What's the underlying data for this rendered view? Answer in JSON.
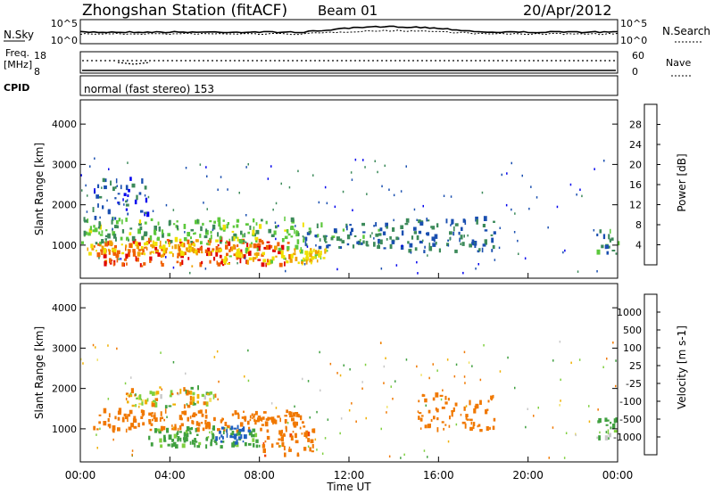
{
  "header": {
    "station": "Zhongshan Station (fitACF)",
    "beam": "Beam 01",
    "date": "20/Apr/2012"
  },
  "noise_panel": {
    "left_label": "N.Sky",
    "left_ticks": [
      "10^5",
      "10^0"
    ],
    "right_label": "N.Search",
    "right_ticks": [
      "10^5",
      "10^0"
    ]
  },
  "freq_panel": {
    "left_label_1": "Freq.",
    "left_label_2": "[MHz]",
    "left_ticks": [
      "18",
      "8"
    ],
    "right_label": "Nave",
    "right_ticks": [
      "60",
      "0"
    ]
  },
  "cpid_panel": {
    "label": "CPID",
    "text": "normal (fast stereo) 153"
  },
  "x_axis": {
    "title": "Time UT",
    "ticks": [
      "00:00",
      "04:00",
      "08:00",
      "12:00",
      "16:00",
      "20:00",
      "00:00"
    ]
  },
  "colors": {
    "power_scale": [
      "#0000ee",
      "#1a4fb0",
      "#3c8a5a",
      "#5cc83c",
      "#f0e000",
      "#f0a000",
      "#f06000",
      "#e00000"
    ],
    "velocity_scale": [
      "#e00000",
      "#f04000",
      "#f07800",
      "#f0b000",
      "#f0e060",
      "#c8c8c8",
      "#80d040",
      "#40a040",
      "#2060c0",
      "#0020e0"
    ]
  },
  "chart_data": [
    {
      "type": "heatmap",
      "ylabel": "Slant Range [km]",
      "yticks": [
        "1000",
        "2000",
        "3000",
        "4000"
      ],
      "ylim": [
        180,
        4600
      ],
      "xlim_hours": [
        0,
        24
      ],
      "colorbar": {
        "label": "Power [dB]",
        "ticks": [
          "4",
          "8",
          "12",
          "16",
          "20",
          "24",
          "28"
        ],
        "range": [
          0,
          32
        ]
      },
      "regions": [
        {
          "x": [
            1.0,
            9.5
          ],
          "y": [
            450,
            1100
          ],
          "level": 27
        },
        {
          "x": [
            0.3,
            6.0
          ],
          "y": [
            700,
            1000
          ],
          "level": 22
        },
        {
          "x": [
            6.0,
            11.0
          ],
          "y": [
            500,
            900
          ],
          "level": 18
        },
        {
          "x": [
            0.0,
            10.0
          ],
          "y": [
            1000,
            1600
          ],
          "level": 13
        },
        {
          "x": [
            10.0,
            14.0
          ],
          "y": [
            900,
            1500
          ],
          "level": 9
        },
        {
          "x": [
            14.0,
            18.5
          ],
          "y": [
            800,
            1600
          ],
          "level": 8
        },
        {
          "x": [
            0.5,
            3.0
          ],
          "y": [
            1600,
            2600
          ],
          "level": 6
        },
        {
          "x": [
            23.0,
            24.0
          ],
          "y": [
            700,
            1300
          ],
          "level": 10
        }
      ]
    },
    {
      "type": "heatmap",
      "ylabel": "Slant Range [km]",
      "yticks": [
        "1000",
        "2000",
        "3000",
        "4000"
      ],
      "ylim": [
        180,
        4600
      ],
      "xlim_hours": [
        0,
        24
      ],
      "colorbar": {
        "label": "Velocity [m s-1]",
        "ticks": [
          "1000",
          "500",
          "100",
          "25",
          "-25",
          "-100",
          "-500",
          "-1000"
        ],
        "range": [
          -1000,
          1000
        ]
      },
      "regions": [
        {
          "x": [
            0.5,
            10.0
          ],
          "y": [
            900,
            1400
          ],
          "velocity": -300
        },
        {
          "x": [
            2.0,
            6.0
          ],
          "y": [
            1500,
            2000
          ],
          "velocity": 0
        },
        {
          "x": [
            3.0,
            8.0
          ],
          "y": [
            500,
            1000
          ],
          "velocity": 200
        },
        {
          "x": [
            6.0,
            7.5
          ],
          "y": [
            600,
            1000
          ],
          "velocity": 800
        },
        {
          "x": [
            8.0,
            10.5
          ],
          "y": [
            300,
            1000
          ],
          "velocity": -400
        },
        {
          "x": [
            15.0,
            18.5
          ],
          "y": [
            900,
            1800
          ],
          "velocity": -300
        },
        {
          "x": [
            23.0,
            24.0
          ],
          "y": [
            700,
            1200
          ],
          "velocity": 150
        }
      ]
    }
  ]
}
